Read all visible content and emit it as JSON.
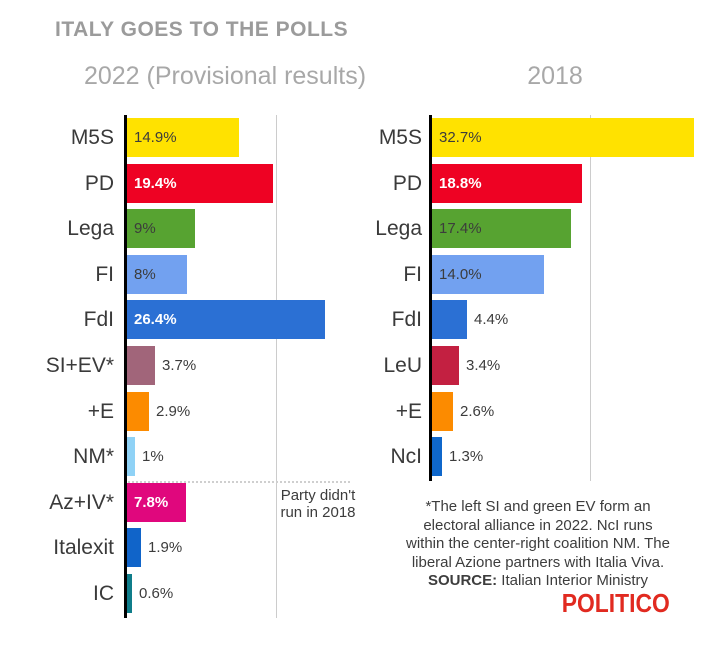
{
  "title": "ITALY GOES TO THE POLLS",
  "logo": {
    "text": "POLITICO",
    "color": "#e12a20"
  },
  "colors": {
    "title_gray": "#9b9b9b",
    "subtitle_gray": "#a8a8a8",
    "axis_black": "#000000",
    "gridline_gray": "#cccccc",
    "text_dark": "#3c3c3c",
    "value_white": "#ffffff"
  },
  "footnote": {
    "lines": [
      "*The left SI and green EV form an",
      "electoral alliance in 2022. NcI runs",
      "within the center-right coalition NM. The",
      "liberal Azione partners with Italia Viva."
    ],
    "source_label": "SOURCE:",
    "source_text": " Italian Interior Ministry"
  },
  "chart_data": [
    {
      "type": "bar",
      "orientation": "horizontal",
      "title": "2022 (Provisional results)",
      "xlim": [
        0,
        30
      ],
      "gridline_pct": 20,
      "grid": true,
      "annotation": "Party didn't run in 2018",
      "categories": [
        "M5S",
        "PD",
        "Lega",
        "FI",
        "FdI",
        "SI+EV*",
        "+E",
        "NM*",
        "Az+IV*",
        "Italexit",
        "IC"
      ],
      "values": [
        14.9,
        19.4,
        9,
        8,
        26.4,
        3.7,
        2.9,
        1,
        7.8,
        1.9,
        0.6
      ],
      "items": [
        {
          "label": "M5S",
          "value": 14.9,
          "display": "14.9%",
          "color": "#ffe200",
          "value_inside": true,
          "value_white": false
        },
        {
          "label": "PD",
          "value": 19.4,
          "display": "19.4%",
          "color": "#ee0223",
          "value_inside": true,
          "value_white": true
        },
        {
          "label": "Lega",
          "value": 9,
          "display": "9%",
          "color": "#57a331",
          "value_inside": true,
          "value_white": false
        },
        {
          "label": "FI",
          "value": 8,
          "display": "8%",
          "color": "#72a1f0",
          "value_inside": true,
          "value_white": false
        },
        {
          "label": "FdI",
          "value": 26.4,
          "display": "26.4%",
          "color": "#2b70d4",
          "value_inside": true,
          "value_white": true
        },
        {
          "label": "SI+EV*",
          "value": 3.7,
          "display": "3.7%",
          "color": "#a1657a",
          "value_inside": false,
          "value_white": false
        },
        {
          "label": "+E",
          "value": 2.9,
          "display": "2.9%",
          "color": "#fc8b00",
          "value_inside": false,
          "value_white": false
        },
        {
          "label": "NM*",
          "value": 1,
          "display": "1%",
          "color": "#8fd2f6",
          "value_inside": false,
          "value_white": false
        },
        {
          "label": "Az+IV*",
          "value": 7.8,
          "display": "7.8%",
          "color": "#e0077d",
          "value_inside": true,
          "value_white": true
        },
        {
          "label": "Italexit",
          "value": 1.9,
          "display": "1.9%",
          "color": "#1064c9",
          "value_inside": false,
          "value_white": false
        },
        {
          "label": "IC",
          "value": 0.6,
          "display": "0.6%",
          "color": "#0f7d8a",
          "value_inside": false,
          "value_white": false
        }
      ]
    },
    {
      "type": "bar",
      "orientation": "horizontal",
      "title": "2018",
      "xlim": [
        0,
        36
      ],
      "gridline_pct": 20,
      "grid": true,
      "categories": [
        "M5S",
        "PD",
        "Lega",
        "FI",
        "FdI",
        "LeU",
        "+E",
        "NcI"
      ],
      "values": [
        32.7,
        18.8,
        17.4,
        14.0,
        4.4,
        3.4,
        2.6,
        1.3
      ],
      "items": [
        {
          "label": "M5S",
          "value": 32.7,
          "display": "32.7%",
          "color": "#ffe200",
          "value_inside": true,
          "value_white": false
        },
        {
          "label": "PD",
          "value": 18.8,
          "display": "18.8%",
          "color": "#ee0223",
          "value_inside": true,
          "value_white": true
        },
        {
          "label": "Lega",
          "value": 17.4,
          "display": "17.4%",
          "color": "#57a331",
          "value_inside": true,
          "value_white": false
        },
        {
          "label": "FI",
          "value": 14.0,
          "display": "14.0%",
          "color": "#72a1f0",
          "value_inside": true,
          "value_white": false
        },
        {
          "label": "FdI",
          "value": 4.4,
          "display": "4.4%",
          "color": "#2b70d4",
          "value_inside": false,
          "value_white": false
        },
        {
          "label": "LeU",
          "value": 3.4,
          "display": "3.4%",
          "color": "#c32041",
          "value_inside": false,
          "value_white": false
        },
        {
          "label": "+E",
          "value": 2.6,
          "display": "2.6%",
          "color": "#fc8b00",
          "value_inside": false,
          "value_white": false
        },
        {
          "label": "NcI",
          "value": 1.3,
          "display": "1.3%",
          "color": "#0f67cb",
          "value_inside": false,
          "value_white": false
        }
      ]
    }
  ]
}
